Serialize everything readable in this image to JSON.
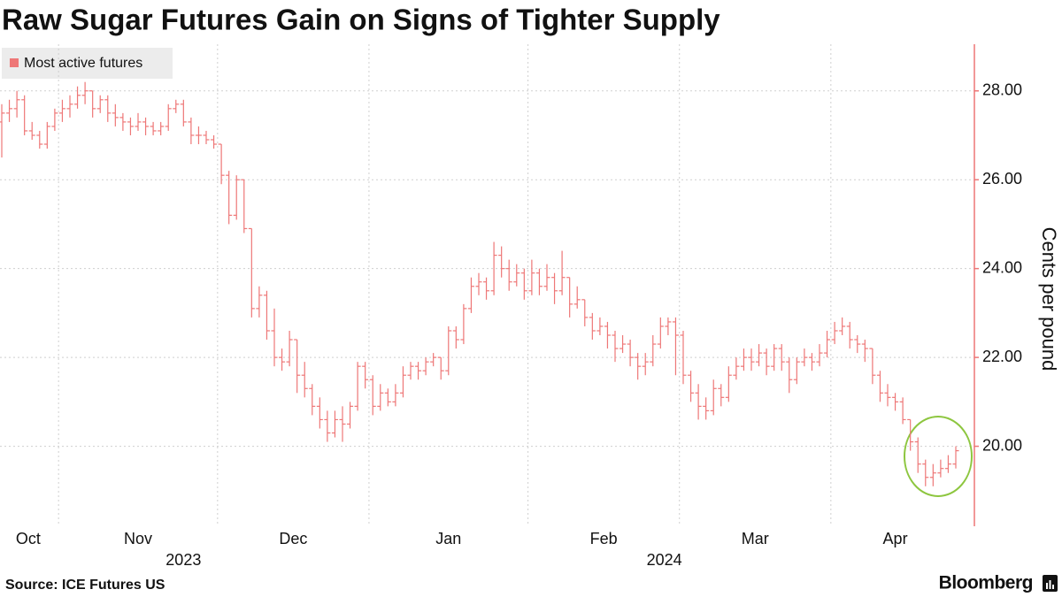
{
  "chart_data": {
    "type": "ohlc",
    "title": "Raw Sugar Futures Gain on Signs of Tighter Supply",
    "series_name": "Most active futures",
    "color": "#ee7777",
    "y_label": "Cents per pound",
    "source": "Source: ICE Futures US",
    "brand": "Bloomberg",
    "ylim": [
      18.2,
      29.05
    ],
    "yticks": [
      {
        "value": 20,
        "label": "20.00"
      },
      {
        "value": 22,
        "label": "22.00"
      },
      {
        "value": 24,
        "label": "24.00"
      },
      {
        "value": 26,
        "label": "26.00"
      },
      {
        "value": 28,
        "label": "28.00"
      }
    ],
    "grid": true,
    "years": [
      {
        "label": "2023",
        "months": [
          {
            "label": "Oct",
            "bars": [
              [
                27.3,
                27.7,
                26.5,
                27.5
              ],
              [
                27.5,
                27.8,
                27.3,
                27.6
              ],
              [
                27.6,
                28.0,
                27.4,
                27.8
              ],
              [
                27.8,
                27.9,
                27.0,
                27.1
              ],
              [
                27.1,
                27.3,
                26.9,
                27.0
              ],
              [
                27.0,
                27.1,
                26.7,
                26.8
              ],
              [
                26.8,
                27.3,
                26.7,
                27.2
              ],
              [
                27.2,
                27.6,
                27.1,
                27.5
              ]
            ]
          },
          {
            "label": "Nov",
            "bars": [
              [
                27.5,
                27.8,
                27.3,
                27.6
              ],
              [
                27.6,
                27.9,
                27.4,
                27.7
              ],
              [
                27.7,
                28.1,
                27.6,
                27.9
              ],
              [
                27.9,
                28.2,
                27.7,
                28.0
              ],
              [
                28.0,
                28.0,
                27.4,
                27.6
              ],
              [
                27.6,
                27.9,
                27.5,
                27.8
              ],
              [
                27.8,
                27.9,
                27.3,
                27.5
              ],
              [
                27.5,
                27.7,
                27.2,
                27.4
              ],
              [
                27.4,
                27.5,
                27.1,
                27.3
              ],
              [
                27.3,
                27.4,
                27.0,
                27.2
              ],
              [
                27.2,
                27.5,
                27.1,
                27.3
              ],
              [
                27.3,
                27.4,
                27.0,
                27.2
              ],
              [
                27.2,
                27.3,
                27.0,
                27.1
              ],
              [
                27.1,
                27.3,
                27.0,
                27.2
              ],
              [
                27.2,
                27.7,
                27.1,
                27.6
              ],
              [
                27.6,
                27.8,
                27.5,
                27.7
              ],
              [
                27.7,
                27.8,
                27.2,
                27.3
              ],
              [
                27.3,
                27.4,
                26.8,
                27.0
              ],
              [
                27.0,
                27.2,
                26.8,
                27.0
              ],
              [
                27.0,
                27.1,
                26.8,
                26.9
              ],
              [
                26.9,
                27.0,
                26.7,
                26.8
              ]
            ]
          },
          {
            "label": "Dec",
            "bars": [
              [
                26.8,
                26.8,
                25.9,
                26.1
              ],
              [
                26.1,
                26.2,
                25.0,
                25.2
              ],
              [
                25.2,
                26.1,
                25.1,
                26.0
              ],
              [
                26.0,
                26.0,
                24.8,
                24.9
              ],
              [
                24.9,
                24.9,
                22.9,
                23.1
              ],
              [
                23.1,
                23.6,
                22.9,
                23.4
              ],
              [
                23.4,
                23.5,
                22.4,
                22.6
              ],
              [
                22.6,
                23.1,
                21.8,
                22.0
              ],
              [
                22.0,
                22.2,
                21.7,
                21.9
              ],
              [
                21.9,
                22.6,
                21.8,
                22.4
              ],
              [
                22.4,
                22.4,
                21.2,
                21.6
              ],
              [
                21.6,
                21.9,
                21.1,
                21.3
              ],
              [
                21.3,
                21.4,
                20.7,
                20.9
              ],
              [
                20.9,
                21.1,
                20.4,
                20.6
              ],
              [
                20.6,
                20.8,
                20.1,
                20.3
              ],
              [
                20.3,
                20.8,
                20.2,
                20.6
              ],
              [
                20.6,
                20.9,
                20.1,
                20.5
              ],
              [
                20.5,
                21.0,
                20.4,
                20.9
              ],
              [
                20.9,
                21.9,
                20.8,
                21.8
              ],
              [
                21.8,
                21.9,
                21.3,
                21.5
              ]
            ]
          }
        ]
      },
      {
        "label": "2024",
        "months": [
          {
            "label": "Jan",
            "bars": [
              [
                21.5,
                21.6,
                20.7,
                20.9
              ],
              [
                20.9,
                21.4,
                20.8,
                21.2
              ],
              [
                21.2,
                21.3,
                20.9,
                21.0
              ],
              [
                21.0,
                21.4,
                20.9,
                21.2
              ],
              [
                21.2,
                21.8,
                21.1,
                21.6
              ],
              [
                21.6,
                21.9,
                21.5,
                21.8
              ],
              [
                21.8,
                21.9,
                21.5,
                21.7
              ],
              [
                21.7,
                22.0,
                21.6,
                21.9
              ],
              [
                21.9,
                22.1,
                21.8,
                22.0
              ],
              [
                22.0,
                22.0,
                21.5,
                21.7
              ],
              [
                21.7,
                22.7,
                21.6,
                22.6
              ],
              [
                22.6,
                22.7,
                22.2,
                22.4
              ],
              [
                22.4,
                23.2,
                22.3,
                23.1
              ],
              [
                23.1,
                23.8,
                23.0,
                23.6
              ],
              [
                23.6,
                23.9,
                23.4,
                23.7
              ],
              [
                23.7,
                23.8,
                23.3,
                23.5
              ],
              [
                23.5,
                24.6,
                23.4,
                24.3
              ],
              [
                24.3,
                24.5,
                23.8,
                24.0
              ],
              [
                24.0,
                24.2,
                23.5,
                23.7
              ],
              [
                23.7,
                24.1,
                23.6,
                23.9
              ],
              [
                23.9,
                24.0,
                23.3,
                23.5
              ]
            ]
          },
          {
            "label": "Feb",
            "bars": [
              [
                23.5,
                24.2,
                23.4,
                23.9
              ],
              [
                23.9,
                24.0,
                23.4,
                23.6
              ],
              [
                23.6,
                24.1,
                23.5,
                23.8
              ],
              [
                23.8,
                23.9,
                23.2,
                23.5
              ],
              [
                23.5,
                24.4,
                23.4,
                23.8
              ],
              [
                23.8,
                23.8,
                22.9,
                23.2
              ],
              [
                23.2,
                23.6,
                23.1,
                23.3
              ],
              [
                23.3,
                23.3,
                22.7,
                22.9
              ],
              [
                22.9,
                23.0,
                22.4,
                22.6
              ],
              [
                22.6,
                22.9,
                22.5,
                22.7
              ],
              [
                22.7,
                22.8,
                22.2,
                22.5
              ],
              [
                22.5,
                22.6,
                21.9,
                22.2
              ],
              [
                22.2,
                22.5,
                22.1,
                22.3
              ],
              [
                22.3,
                22.4,
                21.8,
                22.0
              ],
              [
                22.0,
                22.1,
                21.5,
                21.8
              ],
              [
                21.8,
                22.1,
                21.6,
                21.9
              ],
              [
                21.9,
                22.5,
                21.8,
                22.3
              ],
              [
                22.3,
                22.9,
                22.2,
                22.7
              ],
              [
                22.7,
                22.9,
                22.5,
                22.8
              ],
              [
                22.8,
                22.9,
                21.6,
                22.5
              ]
            ]
          },
          {
            "label": "Mar",
            "bars": [
              [
                22.5,
                22.6,
                21.4,
                21.6
              ],
              [
                21.6,
                21.7,
                21.0,
                21.2
              ],
              [
                21.2,
                21.4,
                20.6,
                20.9
              ],
              [
                20.9,
                21.1,
                20.6,
                20.8
              ],
              [
                20.8,
                21.5,
                20.7,
                21.3
              ],
              [
                21.3,
                21.4,
                20.9,
                21.1
              ],
              [
                21.1,
                21.8,
                21.0,
                21.6
              ],
              [
                21.6,
                22.0,
                21.5,
                21.8
              ],
              [
                21.8,
                22.2,
                21.7,
                22.0
              ],
              [
                22.0,
                22.2,
                21.7,
                21.9
              ],
              [
                21.9,
                22.3,
                21.8,
                22.1
              ],
              [
                22.1,
                22.2,
                21.6,
                21.8
              ],
              [
                21.8,
                22.3,
                21.7,
                22.2
              ],
              [
                22.2,
                22.3,
                21.7,
                21.9
              ],
              [
                21.9,
                22.0,
                21.2,
                21.5
              ],
              [
                21.5,
                22.0,
                21.4,
                21.9
              ],
              [
                21.9,
                22.2,
                21.8,
                22.0
              ],
              [
                22.0,
                22.1,
                21.7,
                21.9
              ],
              [
                21.9,
                22.3,
                21.8,
                22.1
              ],
              [
                22.1,
                22.6,
                22.0,
                22.4
              ]
            ]
          },
          {
            "label": "Apr",
            "bars": [
              [
                22.4,
                22.8,
                22.3,
                22.6
              ],
              [
                22.6,
                22.9,
                22.5,
                22.7
              ],
              [
                22.7,
                22.8,
                22.2,
                22.4
              ],
              [
                22.4,
                22.5,
                22.1,
                22.3
              ],
              [
                22.3,
                22.4,
                21.9,
                22.2
              ],
              [
                22.2,
                22.2,
                21.4,
                21.6
              ],
              [
                21.6,
                21.7,
                21.0,
                21.2
              ],
              [
                21.2,
                21.4,
                20.9,
                21.1
              ],
              [
                21.1,
                21.2,
                20.8,
                21.0
              ],
              [
                21.0,
                21.1,
                20.5,
                20.6
              ],
              [
                20.6,
                20.6,
                19.9,
                20.1
              ],
              [
                20.1,
                20.2,
                19.4,
                19.6
              ],
              [
                19.6,
                19.7,
                19.1,
                19.3
              ],
              [
                19.3,
                19.6,
                19.1,
                19.4
              ],
              [
                19.4,
                19.7,
                19.3,
                19.5
              ],
              [
                19.5,
                19.8,
                19.4,
                19.6
              ],
              [
                19.6,
                20.0,
                19.5,
                19.9
              ]
            ]
          }
        ]
      }
    ]
  }
}
